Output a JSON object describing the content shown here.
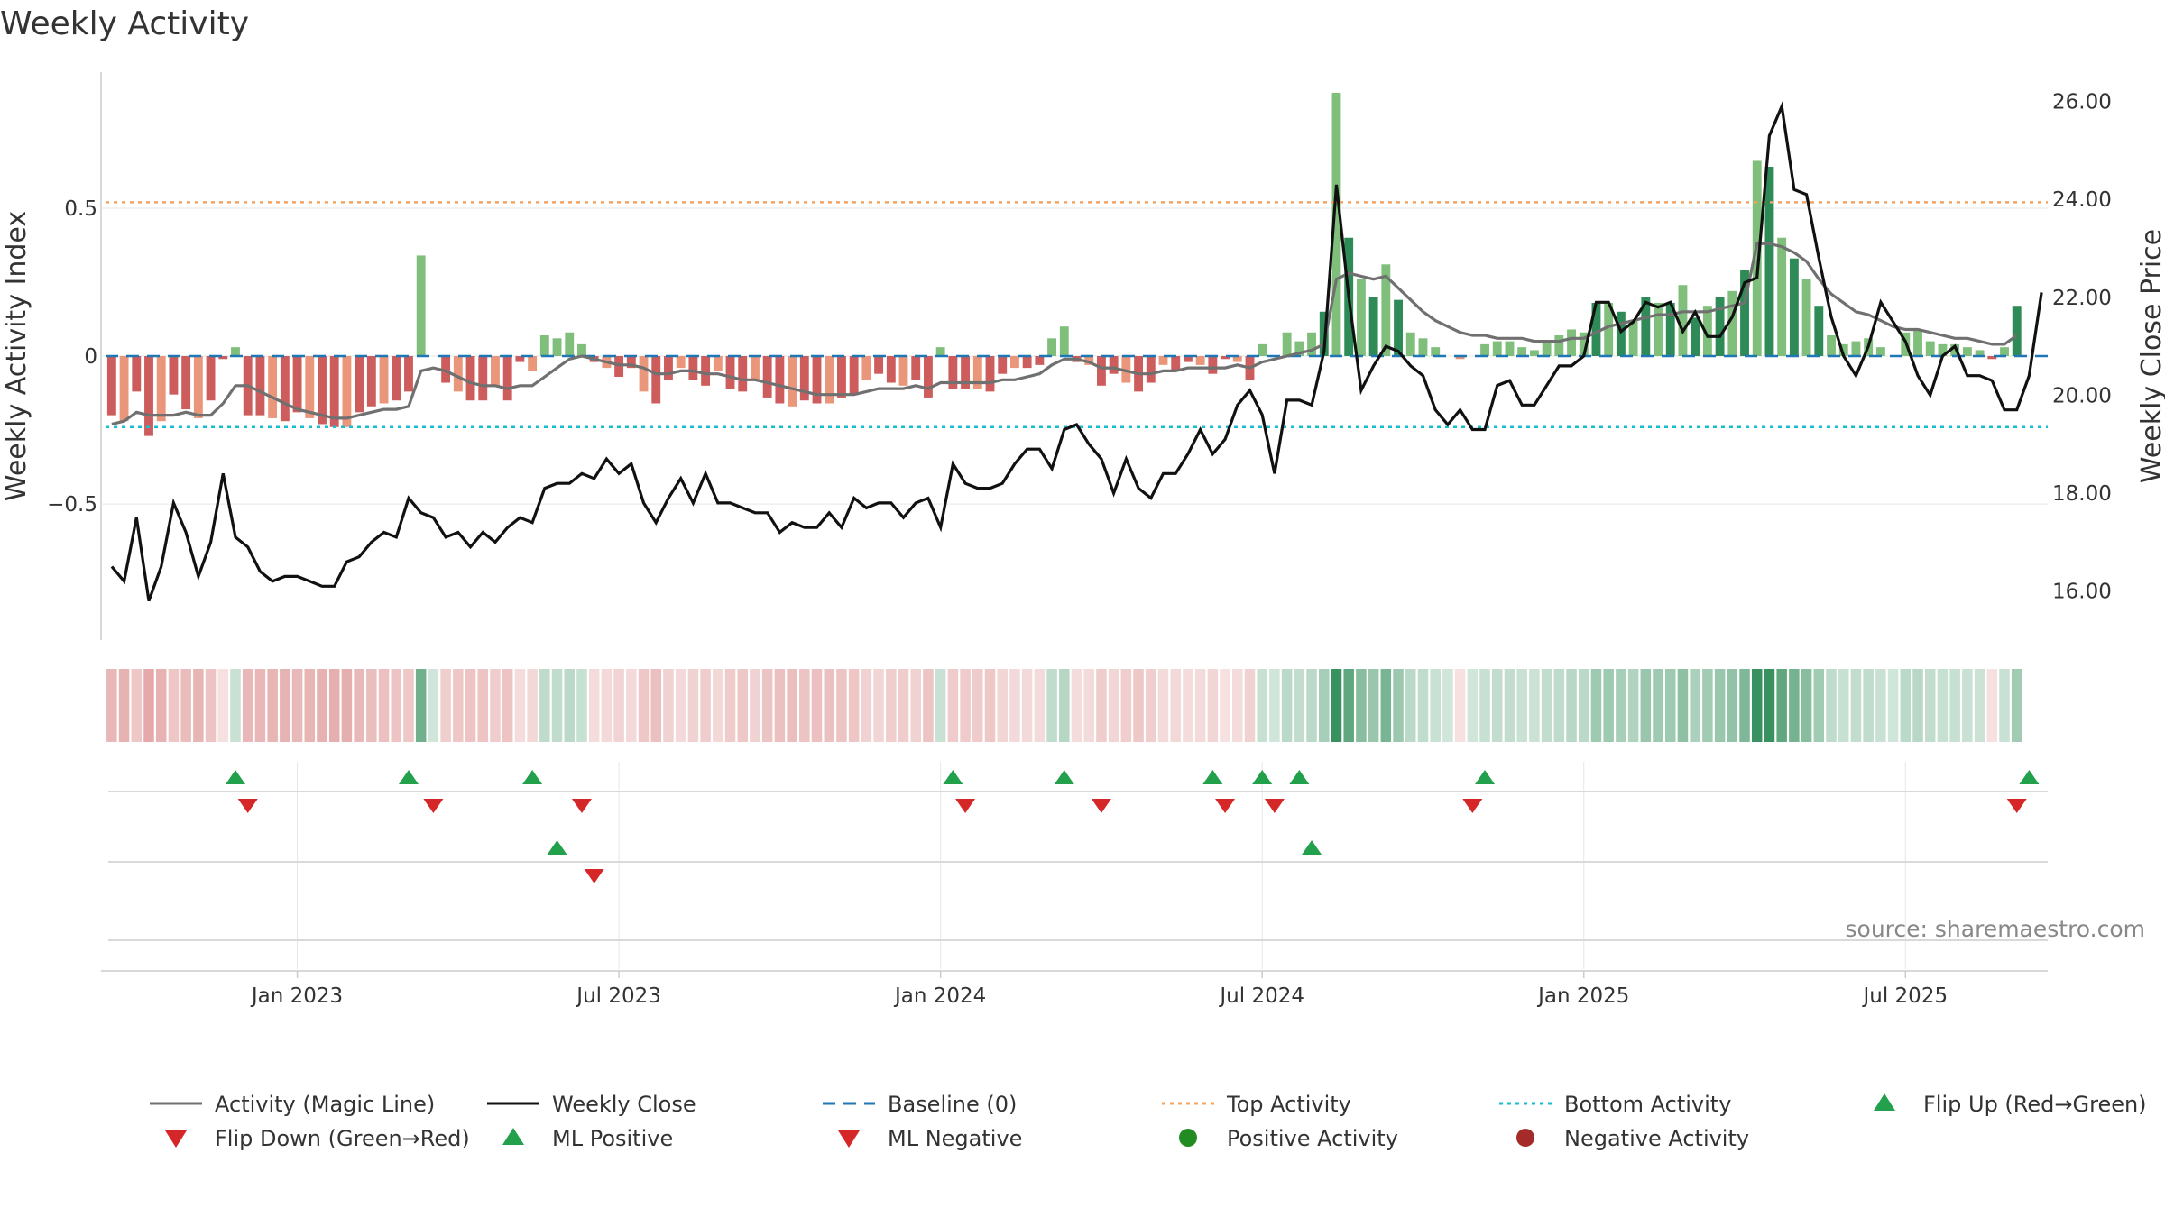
{
  "chart_data": {
    "type": "bar",
    "title": "Weekly Activity",
    "ylabel_left": "Weekly Activity Index",
    "ylabel_right": "Weekly Close Price",
    "source": "source: sharemaestro.com",
    "left_axis": {
      "ylim": [
        -0.96,
        0.96
      ],
      "ticks": [
        0.5,
        0,
        -0.5
      ],
      "tick_labels": [
        "0.5",
        "0",
        "−0.5"
      ]
    },
    "right_axis": {
      "ylim": [
        15.0,
        26.6
      ],
      "ticks": [
        26,
        24,
        22,
        20,
        18,
        16
      ],
      "tick_labels": [
        "26.00",
        "24.00",
        "22.00",
        "20.00",
        "18.00",
        "16.00"
      ]
    },
    "x_ticks": [
      {
        "label": "Jan 2023",
        "week": 15
      },
      {
        "label": "Jul 2023",
        "week": 41
      },
      {
        "label": "Jan 2024",
        "week": 67
      },
      {
        "label": "Jul 2024",
        "week": 93
      },
      {
        "label": "Jan 2025",
        "week": 119
      },
      {
        "label": "Jul 2025",
        "week": 145
      }
    ],
    "weeks_total": 157,
    "reference_lines": {
      "baseline": 0,
      "top_activity": 0.52,
      "bottom_activity": -0.24
    },
    "activity": [
      -0.2,
      -0.22,
      -0.12,
      -0.27,
      -0.22,
      -0.13,
      -0.18,
      -0.21,
      -0.15,
      -0.01,
      0.03,
      -0.2,
      -0.2,
      -0.21,
      -0.22,
      -0.19,
      -0.21,
      -0.23,
      -0.24,
      -0.24,
      -0.19,
      -0.17,
      -0.16,
      -0.15,
      -0.12,
      0.34,
      0.0,
      -0.09,
      -0.12,
      -0.15,
      -0.15,
      -0.1,
      -0.15,
      -0.02,
      -0.05,
      0.07,
      0.06,
      0.08,
      0.04,
      -0.02,
      -0.04,
      -0.07,
      -0.04,
      -0.12,
      -0.16,
      -0.08,
      -0.04,
      -0.08,
      -0.1,
      -0.05,
      -0.11,
      -0.12,
      -0.08,
      -0.14,
      -0.16,
      -0.17,
      -0.15,
      -0.16,
      -0.16,
      -0.14,
      -0.13,
      -0.08,
      -0.06,
      -0.09,
      -0.1,
      -0.08,
      -0.14,
      0.03,
      -0.11,
      -0.11,
      -0.11,
      -0.12,
      -0.06,
      -0.04,
      -0.04,
      -0.03,
      0.06,
      0.1,
      -0.02,
      -0.03,
      -0.1,
      -0.06,
      -0.09,
      -0.12,
      -0.09,
      -0.03,
      -0.05,
      -0.02,
      -0.03,
      -0.06,
      -0.01,
      -0.02,
      -0.08,
      0.04,
      0.0,
      0.08,
      0.05,
      0.08,
      0.15,
      0.89,
      0.4,
      0.26,
      0.2,
      0.31,
      0.19,
      0.08,
      0.06,
      0.03,
      0.0,
      -0.01,
      0.0,
      0.04,
      0.05,
      0.05,
      0.03,
      0.02,
      0.05,
      0.07,
      0.09,
      0.08,
      0.18,
      0.18,
      0.15,
      0.12,
      0.2,
      0.18,
      0.18,
      0.24,
      0.13,
      0.17,
      0.2,
      0.22,
      0.29,
      0.66,
      0.64,
      0.4,
      0.33,
      0.26,
      0.17,
      0.07,
      0.04,
      0.05,
      0.06,
      0.03,
      0.0,
      0.08,
      0.09,
      0.05,
      0.04,
      0.04,
      0.03,
      0.02,
      -0.01,
      0.03,
      0.17
    ],
    "magic_line": [
      -0.23,
      -0.22,
      -0.19,
      -0.2,
      -0.2,
      -0.2,
      -0.19,
      -0.2,
      -0.2,
      -0.16,
      -0.1,
      -0.1,
      -0.12,
      -0.14,
      -0.16,
      -0.18,
      -0.19,
      -0.2,
      -0.21,
      -0.21,
      -0.2,
      -0.19,
      -0.18,
      -0.18,
      -0.17,
      -0.05,
      -0.04,
      -0.05,
      -0.07,
      -0.09,
      -0.1,
      -0.1,
      -0.11,
      -0.1,
      -0.1,
      -0.07,
      -0.04,
      -0.01,
      0.0,
      -0.01,
      -0.02,
      -0.03,
      -0.03,
      -0.04,
      -0.06,
      -0.06,
      -0.05,
      -0.05,
      -0.06,
      -0.06,
      -0.07,
      -0.08,
      -0.08,
      -0.09,
      -0.1,
      -0.11,
      -0.12,
      -0.13,
      -0.13,
      -0.13,
      -0.13,
      -0.12,
      -0.11,
      -0.11,
      -0.11,
      -0.1,
      -0.11,
      -0.09,
      -0.09,
      -0.09,
      -0.09,
      -0.09,
      -0.08,
      -0.08,
      -0.07,
      -0.06,
      -0.03,
      -0.01,
      -0.01,
      -0.02,
      -0.04,
      -0.04,
      -0.05,
      -0.06,
      -0.06,
      -0.05,
      -0.05,
      -0.04,
      -0.04,
      -0.04,
      -0.04,
      -0.03,
      -0.04,
      -0.02,
      -0.01,
      0.0,
      0.01,
      0.02,
      0.04,
      0.26,
      0.28,
      0.27,
      0.26,
      0.27,
      0.23,
      0.19,
      0.15,
      0.12,
      0.1,
      0.08,
      0.07,
      0.07,
      0.06,
      0.06,
      0.06,
      0.05,
      0.05,
      0.05,
      0.06,
      0.06,
      0.08,
      0.1,
      0.11,
      0.12,
      0.13,
      0.14,
      0.14,
      0.15,
      0.15,
      0.15,
      0.16,
      0.17,
      0.18,
      0.38,
      0.38,
      0.37,
      0.35,
      0.32,
      0.26,
      0.21,
      0.18,
      0.15,
      0.14,
      0.12,
      0.1,
      0.09,
      0.09,
      0.08,
      0.07,
      0.06,
      0.06,
      0.05,
      0.04,
      0.04,
      0.07
    ],
    "weekly_close": [
      16.5,
      16.2,
      17.5,
      15.8,
      16.5,
      17.8,
      17.2,
      16.3,
      17.0,
      18.4,
      17.1,
      16.9,
      16.4,
      16.2,
      16.3,
      16.3,
      16.2,
      16.1,
      16.1,
      16.6,
      16.7,
      17.0,
      17.2,
      17.1,
      17.9,
      17.6,
      17.5,
      17.1,
      17.2,
      16.9,
      17.2,
      17.0,
      17.3,
      17.5,
      17.4,
      18.1,
      18.2,
      18.2,
      18.4,
      18.3,
      18.7,
      18.4,
      18.6,
      17.8,
      17.4,
      17.9,
      18.3,
      17.8,
      18.4,
      17.8,
      17.8,
      17.7,
      17.6,
      17.6,
      17.2,
      17.4,
      17.3,
      17.3,
      17.6,
      17.3,
      17.9,
      17.7,
      17.8,
      17.8,
      17.5,
      17.8,
      17.9,
      17.3,
      18.6,
      18.2,
      18.1,
      18.1,
      18.2,
      18.6,
      18.9,
      18.9,
      18.5,
      19.3,
      19.4,
      19.0,
      18.7,
      18.0,
      18.7,
      18.1,
      17.9,
      18.4,
      18.4,
      18.8,
      19.3,
      18.8,
      19.1,
      19.8,
      20.1,
      19.6,
      18.4,
      19.9,
      19.9,
      19.8,
      20.9,
      24.3,
      22.0,
      20.1,
      20.6,
      21.0,
      20.9,
      20.6,
      20.4,
      19.7,
      19.4,
      19.7,
      19.3,
      19.3,
      20.2,
      20.3,
      19.8,
      19.8,
      20.2,
      20.6,
      20.6,
      20.8,
      21.9,
      21.9,
      21.3,
      21.5,
      21.9,
      21.8,
      21.9,
      21.3,
      21.7,
      21.2,
      21.2,
      21.6,
      22.3,
      22.4,
      25.3,
      25.9,
      24.2,
      24.1,
      22.8,
      21.6,
      20.8,
      20.4,
      21.0,
      21.9,
      21.5,
      21.1,
      20.4,
      20.0,
      20.8,
      21.0,
      20.4,
      20.4,
      20.3,
      19.7,
      19.7,
      20.4,
      22.1
    ],
    "flip_up": [
      10,
      24,
      34,
      68,
      77,
      89,
      93,
      96,
      111,
      155
    ],
    "flip_down": [
      11,
      26,
      38,
      69,
      80,
      90,
      94,
      110,
      154
    ],
    "ml_positive": [
      36,
      97
    ],
    "ml_negative": [
      39
    ],
    "legend": [
      {
        "label": "Activity (Magic Line)",
        "kind": "line-gray"
      },
      {
        "label": "Weekly Close",
        "kind": "line-black"
      },
      {
        "label": "Baseline (0)",
        "kind": "dash-blue"
      },
      {
        "label": "Top Activity",
        "kind": "dot-orange"
      },
      {
        "label": "Bottom Activity",
        "kind": "dot-cyan"
      },
      {
        "label": "Flip Up (Red→Green)",
        "kind": "tri-up"
      },
      {
        "label": "Flip Down (Green→Red)",
        "kind": "tri-down"
      },
      {
        "label": "ML Positive",
        "kind": "tri-up"
      },
      {
        "label": "ML Negative",
        "kind": "tri-down"
      },
      {
        "label": "Positive Activity",
        "kind": "dot-green"
      },
      {
        "label": "Negative Activity",
        "kind": "dot-red"
      }
    ],
    "colors": {
      "pos_strong": "#2e8b57",
      "pos_light": "#7fbf7b",
      "neg_strong": "#cd5c5c",
      "neg_light": "#e9967a",
      "magic_line": "#707070",
      "close_line": "#111111",
      "baseline": "#1f77b4",
      "top": "#f4a460",
      "bottom": "#17becf",
      "tri_up": "#22a04b",
      "tri_down": "#d62728",
      "pos_dot": "#228b22",
      "neg_dot": "#a52a2a",
      "grid": "#e6e6e6",
      "axis": "#cccccc"
    }
  }
}
